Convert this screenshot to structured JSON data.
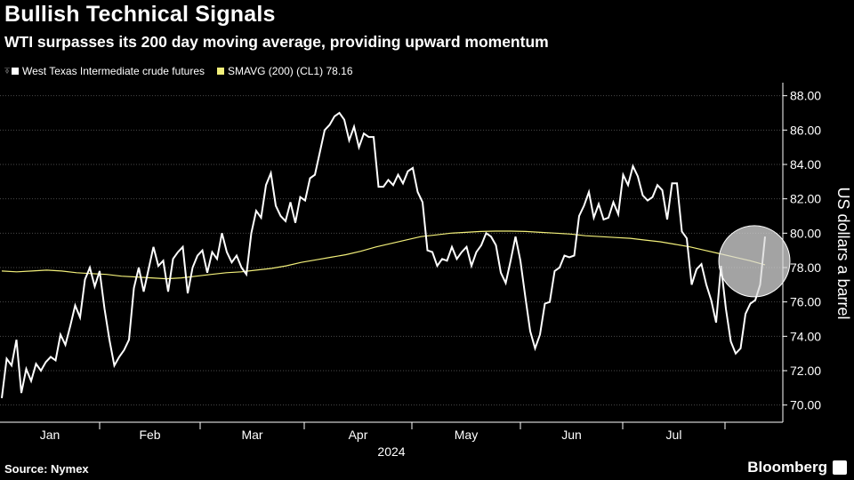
{
  "title": "Bullish Technical Signals",
  "subtitle": "WTI surpasses its 200 day moving average, providing upward momentum",
  "source": "Source: Nymex",
  "brand": "Bloomberg",
  "colors": {
    "wti": "#ffffff",
    "sma": "#f2ef7a",
    "grid": "#4a4a4a",
    "highlight": "#d9d9d9"
  },
  "chart_data": {
    "type": "line",
    "ylabel": "US dollars a barrel",
    "ylim": [
      69,
      88.5
    ],
    "yticks": [
      "88.00",
      "86.00",
      "84.00",
      "82.00",
      "80.00",
      "78.00",
      "76.00",
      "74.00",
      "72.00",
      "70.00"
    ],
    "xticks": [
      "Jan",
      "Feb",
      "Mar",
      "Apr",
      "May",
      "Jun",
      "Jul"
    ],
    "xyear": "2024",
    "grid": true,
    "legend_position": "top-left",
    "annotation": "circle highlighting latest crossing above moving average",
    "series": [
      {
        "name": "West Texas Intermediate crude futures",
        "values": [
          70.4,
          72.7,
          72.3,
          73.8,
          70.7,
          72.1,
          71.4,
          72.4,
          72.0,
          72.5,
          72.8,
          72.6,
          74.1,
          73.5,
          74.6,
          75.8,
          75.1,
          77.3,
          78.0,
          76.9,
          77.8,
          75.6,
          73.8,
          72.3,
          72.8,
          73.2,
          73.8,
          76.8,
          78.0,
          76.6,
          77.9,
          79.2,
          78.1,
          78.4,
          76.6,
          78.5,
          78.9,
          79.2,
          76.5,
          78.0,
          78.7,
          79.0,
          77.7,
          78.9,
          78.5,
          80.0,
          78.9,
          78.3,
          78.7,
          78.0,
          77.6,
          80.0,
          81.3,
          80.9,
          82.8,
          83.5,
          81.6,
          81.0,
          80.7,
          81.8,
          80.6,
          82.1,
          81.9,
          83.2,
          83.4,
          84.7,
          86.0,
          86.3,
          86.8,
          87.0,
          86.6,
          85.4,
          86.2,
          85.0,
          85.8,
          85.6,
          85.6,
          82.7,
          82.7,
          83.1,
          82.8,
          83.4,
          82.9,
          83.6,
          83.8,
          82.4,
          81.8,
          79.0,
          78.9,
          78.1,
          78.5,
          78.4,
          79.2,
          78.5,
          78.9,
          79.2,
          78.1,
          78.9,
          79.3,
          80.0,
          79.8,
          79.3,
          77.7,
          77.1,
          78.4,
          79.8,
          78.4,
          76.3,
          74.3,
          73.3,
          74.1,
          75.9,
          76.0,
          77.8,
          78.0,
          78.7,
          78.6,
          78.7,
          81.0,
          81.6,
          82.4,
          80.9,
          81.7,
          80.8,
          80.9,
          81.8,
          81.1,
          83.4,
          82.8,
          83.9,
          83.3,
          82.2,
          81.9,
          82.1,
          82.8,
          82.5,
          80.8,
          82.9,
          82.9,
          80.1,
          79.7,
          77.0,
          77.9,
          78.2,
          77.0,
          76.1,
          74.8,
          78.1,
          75.6,
          73.7,
          73.0,
          73.3,
          75.3,
          75.9,
          76.1,
          77.0,
          79.8
        ]
      },
      {
        "name": "SMAVG (200) (CL1) 78.16",
        "values": [
          77.8,
          77.75,
          77.8,
          77.85,
          77.8,
          77.7,
          77.65,
          77.6,
          77.5,
          77.45,
          77.4,
          77.35,
          77.4,
          77.5,
          77.6,
          77.7,
          77.75,
          77.85,
          77.95,
          78.1,
          78.3,
          78.45,
          78.6,
          78.75,
          78.95,
          79.2,
          79.4,
          79.6,
          79.8,
          79.9,
          80.0,
          80.05,
          80.1,
          80.12,
          80.12,
          80.1,
          80.05,
          80.0,
          79.95,
          79.85,
          79.8,
          79.75,
          79.7,
          79.6,
          79.5,
          79.35,
          79.2,
          79.0,
          78.8,
          78.6,
          78.4,
          78.16
        ]
      }
    ]
  }
}
